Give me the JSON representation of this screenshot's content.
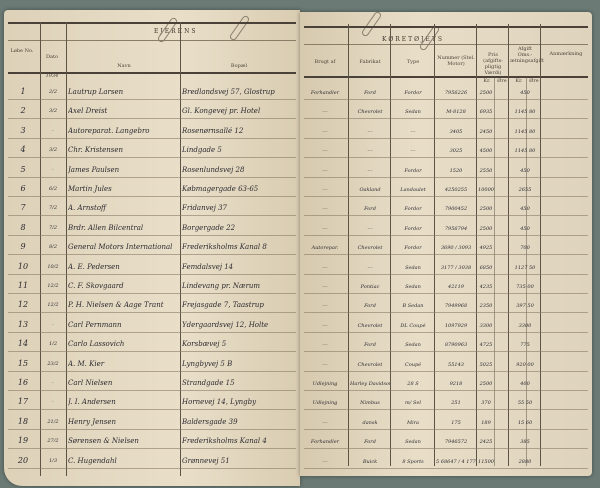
{
  "left_page": {
    "title": "EJERENS",
    "headers": {
      "no": "Løbe No.",
      "date": "Dato",
      "year": "1934",
      "name": "Navn",
      "address": "Bopæl"
    }
  },
  "right_page": {
    "title": "KØRETØJETS",
    "headers": {
      "used_by": "Brugt af",
      "make": "Fabrikat",
      "type": "Type",
      "number": "Nummer (Stel. Motor)",
      "price": "Pris (afgifts-pligtig Værdi)",
      "tax": "Afgift Oms.-ætningsafgift",
      "remark": "Anmærkning",
      "kr": "Kr.",
      "ore": "Øre"
    }
  },
  "rows": [
    {
      "no": "1",
      "date": "2/2",
      "name": "Lautrup Larsen",
      "address": "Bredlandsvej 57, Glostrup",
      "used_by": "Forhandler",
      "make": "Ford",
      "type": "Fordor",
      "number": "7956226",
      "price": "2500",
      "tax": "450"
    },
    {
      "no": "2",
      "date": "3/2",
      "name": "Axel Dreist",
      "address": "Gl. Kongevej pr. Hotel",
      "used_by": "---",
      "make": "Chevrolet",
      "type": "Sedan",
      "number": "M-8128",
      "price": "6935",
      "tax": "1145 80"
    },
    {
      "no": "3",
      "date": "-",
      "name": "Autoreparat. Langebro",
      "address": "Rosenørnsallé 12",
      "used_by": "---",
      "make": "---",
      "type": "---",
      "number": "3405",
      "price": "2450",
      "tax": "1145 80"
    },
    {
      "no": "4",
      "date": "3/2",
      "name": "Chr. Kristensen",
      "address": "Lindgade 5",
      "used_by": "---",
      "make": "---",
      "type": "---",
      "number": "3025",
      "price": "4500",
      "tax": "1145 80"
    },
    {
      "no": "5",
      "date": "-",
      "name": "James Paulsen",
      "address": "Rosenlundsvej 28",
      "used_by": "---",
      "make": "---",
      "type": "Fordor",
      "number": "1520",
      "price": "2550",
      "tax": "450"
    },
    {
      "no": "6",
      "date": "6/2",
      "name": "Martin Jules",
      "address": "Købmagergade 63-65",
      "used_by": "---",
      "make": "Oakland",
      "type": "Landaulet",
      "number": "4250255",
      "price": "10000",
      "tax": "2655"
    },
    {
      "no": "7",
      "date": "7/2",
      "name": "A. Arnstoff",
      "address": "Fridanvej 37",
      "used_by": "---",
      "make": "Ford",
      "type": "Fordor",
      "number": "7900452",
      "price": "2500",
      "tax": "450"
    },
    {
      "no": "8",
      "date": "7/2",
      "name": "Brdr. Allen Bilcentral",
      "address": "Borgergade 22",
      "used_by": "---",
      "make": "---",
      "type": "Fordor",
      "number": "7956794",
      "price": "2500",
      "tax": "450"
    },
    {
      "no": "9",
      "date": "8/2",
      "name": "General Motors International",
      "address": "Frederiksholms Kanal 8",
      "used_by": "Autorepar.",
      "make": "Chevrolet",
      "type": "Fordor",
      "number": "3690 / 3093",
      "price": "4925",
      "tax": "700"
    },
    {
      "no": "10",
      "date": "10/2",
      "name": "A. E. Pedersen",
      "address": "Femdalsvej 14",
      "used_by": "---",
      "make": "---",
      "type": "Sedan",
      "number": "3177 / 3038",
      "price": "6850",
      "tax": "1127 50"
    },
    {
      "no": "11",
      "date": "12/2",
      "name": "C. F. Skovgaard",
      "address": "Lindevang pr. Nærum",
      "used_by": "---",
      "make": "Pontiac",
      "type": "Sedan",
      "number": "42119",
      "price": "4235",
      "tax": "735 00"
    },
    {
      "no": "12",
      "date": "12/2",
      "name": "P. H. Nielsen & Aage Trant",
      "address": "Frejasgade 7, Taastrup",
      "used_by": "---",
      "make": "Ford",
      "type": "B Sedan",
      "number": "7949968",
      "price": "2350",
      "tax": "397 50"
    },
    {
      "no": "13",
      "date": "-",
      "name": "Carl Pernmann",
      "address": "Ydergaardsvej 12, Holte",
      "used_by": "---",
      "make": "Chevrolet",
      "type": "DL Coupé",
      "number": "1097929",
      "price": "3300",
      "tax": "3300"
    },
    {
      "no": "14",
      "date": "1/2",
      "name": "Carlo Lassovich",
      "address": "Korsbævej 5",
      "used_by": "---",
      "make": "Ford",
      "type": "Sedan",
      "number": "8790963",
      "price": "4725",
      "tax": "775"
    },
    {
      "no": "15",
      "date": "23/2",
      "name": "A. M. Kier",
      "address": "Lyngbyvej 5 B",
      "used_by": "---",
      "make": "Chevrolet",
      "type": "Coupé",
      "number": "55143",
      "price": "5025",
      "tax": "920 00"
    },
    {
      "no": "16",
      "date": "-",
      "name": "Carl Nielsen",
      "address": "Strandgade 15",
      "used_by": "Udlejning",
      "make": "Harley Davidson",
      "type": "28 S",
      "number": "9218",
      "price": "2500",
      "tax": "400"
    },
    {
      "no": "17",
      "date": "-",
      "name": "J. I. Andersen",
      "address": "Hornevej 14, Lyngby",
      "used_by": "Udlejning",
      "make": "Nimbus",
      "type": "m/ Sel",
      "number": "251",
      "price": "370",
      "tax": "55 50"
    },
    {
      "no": "18",
      "date": "21/2",
      "name": "Henry Jensen",
      "address": "Baldersgade 39",
      "used_by": "---",
      "make": "dansk",
      "type": "Mira",
      "number": "175",
      "price": "189",
      "tax": "15 60"
    },
    {
      "no": "19",
      "date": "27/2",
      "name": "Sørensen & Nielsen",
      "address": "Frederiksholms Kanal 4",
      "used_by": "Forhandler",
      "make": "Ford",
      "type": "Sedan",
      "number": "7946572",
      "price": "2425",
      "tax": "385"
    },
    {
      "no": "20",
      "date": "1/3",
      "name": "C. Hugendahl",
      "address": "Grønnevej 51",
      "used_by": "---",
      "make": "Buick",
      "type": "8 Sports",
      "number": "5 68647 / 4 17753",
      "price": "11500",
      "tax": "2880"
    }
  ]
}
